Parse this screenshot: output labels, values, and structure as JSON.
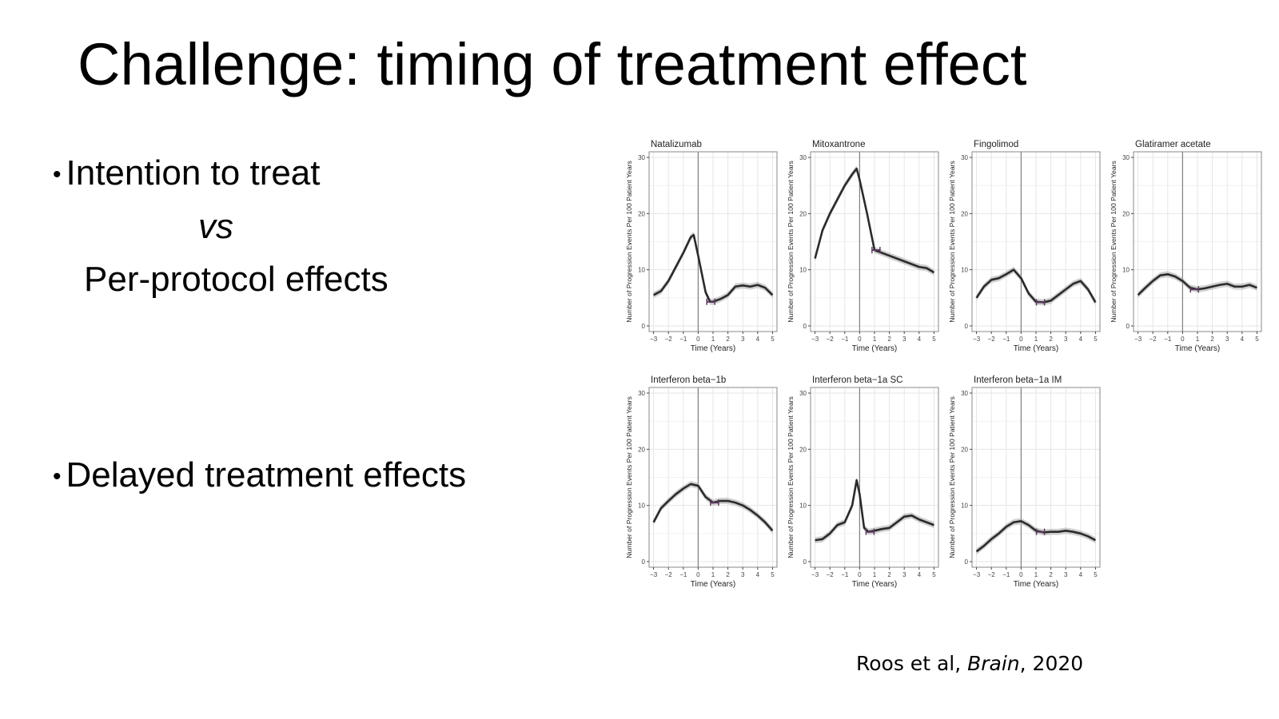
{
  "slide": {
    "title": "Challenge: timing of treatment effect",
    "bullets": {
      "first": "Intention to treat",
      "versus": "vs",
      "second_line": "Per-protocol effects",
      "third": "Delayed treatment effects"
    },
    "bullet_glyph": "•",
    "citation": {
      "authors": "Roos et al, ",
      "journal": "Brain",
      "year": ", 2020"
    }
  },
  "chart_data": [
    {
      "type": "line",
      "title": "Natalizumab",
      "xlabel": "Time (Years)",
      "ylabel": "Number of Progression Events Per 100 Patient Years",
      "xlim": [
        -3.3,
        5.3
      ],
      "ylim": [
        -1,
        31
      ],
      "xticks": [
        -3,
        -2,
        -1,
        0,
        1,
        2,
        3,
        4,
        5
      ],
      "yticks": [
        0,
        10,
        20,
        30
      ],
      "vline": 0,
      "x": [
        -3,
        -2.5,
        -2,
        -1.5,
        -1,
        -0.5,
        -0.3,
        0,
        0.5,
        0.8,
        1,
        1.5,
        2,
        2.5,
        3,
        3.5,
        4,
        4.5,
        5
      ],
      "y": [
        5.5,
        6.2,
        8,
        10.5,
        13,
        15.8,
        16.2,
        12.5,
        6,
        4.3,
        4.3,
        4.8,
        5.5,
        7,
        7.2,
        7,
        7.3,
        6.8,
        5.5
      ],
      "marker": {
        "x": 0.85,
        "y": 4.3
      }
    },
    {
      "type": "line",
      "title": "Mitoxantrone",
      "xlabel": "Time (Years)",
      "ylabel": "Number of Progression Events Per 100 Patient Years",
      "xlim": [
        -3.3,
        5.3
      ],
      "ylim": [
        -1,
        31
      ],
      "xticks": [
        -3,
        -2,
        -1,
        0,
        1,
        2,
        3,
        4,
        5
      ],
      "yticks": [
        0,
        10,
        20,
        30
      ],
      "vline": 0,
      "x": [
        -3,
        -2.5,
        -2,
        -1.5,
        -1,
        -0.5,
        -0.2,
        0,
        0.5,
        1,
        1.5,
        2,
        2.5,
        3,
        3.5,
        4,
        4.5,
        5
      ],
      "y": [
        12,
        17,
        20,
        22.5,
        25,
        27,
        28,
        26,
        20,
        13.5,
        13,
        12.5,
        12,
        11.5,
        11,
        10.5,
        10.3,
        9.5
      ],
      "marker": {
        "x": 1.1,
        "y": 13.5
      }
    },
    {
      "type": "line",
      "title": "Fingolimod",
      "xlabel": "Time (Years)",
      "ylabel": "Number of Progression Events Per 100 Patient Years",
      "xlim": [
        -3.3,
        5.3
      ],
      "ylim": [
        -1,
        31
      ],
      "xticks": [
        -3,
        -2,
        -1,
        0,
        1,
        2,
        3,
        4,
        5
      ],
      "yticks": [
        0,
        10,
        20,
        30
      ],
      "vline": 0,
      "x": [
        -3,
        -2.5,
        -2,
        -1.5,
        -1,
        -0.5,
        0,
        0.5,
        1,
        1.5,
        2,
        2.5,
        3,
        3.5,
        4,
        4.5,
        5
      ],
      "y": [
        5,
        7,
        8.2,
        8.5,
        9.2,
        10,
        8.5,
        5.8,
        4.3,
        4.2,
        4.5,
        5.5,
        6.5,
        7.5,
        8,
        6.5,
        4.2
      ],
      "marker": {
        "x": 1.3,
        "y": 4.2
      }
    },
    {
      "type": "line",
      "title": "Glatiramer acetate",
      "xlabel": "Time (Years)",
      "ylabel": "Number of Progression Events Per 100 Patient Years",
      "xlim": [
        -3.3,
        5.3
      ],
      "ylim": [
        -1,
        31
      ],
      "xticks": [
        -3,
        -2,
        -1,
        0,
        1,
        2,
        3,
        4,
        5
      ],
      "yticks": [
        0,
        10,
        20,
        30
      ],
      "vline": 0,
      "x": [
        -3,
        -2.5,
        -2,
        -1.5,
        -1,
        -0.5,
        0,
        0.5,
        1,
        1.5,
        2,
        2.5,
        3,
        3.5,
        4,
        4.5,
        5
      ],
      "y": [
        5.5,
        6.8,
        8,
        9,
        9.2,
        8.8,
        8,
        6.8,
        6.5,
        6.7,
        7,
        7.3,
        7.5,
        7,
        7,
        7.3,
        6.8
      ],
      "marker": {
        "x": 0.8,
        "y": 6.5
      }
    },
    {
      "type": "line",
      "title": "Interferon beta−1b",
      "xlabel": "Time (Years)",
      "ylabel": "Number of Progression Events Per 100 Patient Years",
      "xlim": [
        -3.3,
        5.3
      ],
      "ylim": [
        -1,
        31
      ],
      "xticks": [
        -3,
        -2,
        -1,
        0,
        1,
        2,
        3,
        4,
        5
      ],
      "yticks": [
        0,
        10,
        20,
        30
      ],
      "vline": 0,
      "x": [
        -3,
        -2.5,
        -2,
        -1.5,
        -1,
        -0.5,
        0,
        0.5,
        1,
        1.5,
        2,
        2.5,
        3,
        3.5,
        4,
        4.5,
        5
      ],
      "y": [
        7,
        9.5,
        10.8,
        12,
        13,
        13.8,
        13.5,
        11.5,
        10.5,
        10.8,
        10.8,
        10.5,
        10,
        9.2,
        8.2,
        7,
        5.5
      ],
      "marker": {
        "x": 1.1,
        "y": 10.5
      }
    },
    {
      "type": "line",
      "title": "Interferon beta−1a SC",
      "xlabel": "Time (Years)",
      "ylabel": "Number of Progression Events Per 100 Patient Years",
      "xlim": [
        -3.3,
        5.3
      ],
      "ylim": [
        -1,
        31
      ],
      "xticks": [
        -3,
        -2,
        -1,
        0,
        1,
        2,
        3,
        4,
        5
      ],
      "yticks": [
        0,
        10,
        20,
        30
      ],
      "vline": 0,
      "x": [
        -3,
        -2.5,
        -2,
        -1.5,
        -1,
        -0.5,
        -0.2,
        0,
        0.3,
        0.6,
        1,
        1.5,
        2,
        2.5,
        3,
        3.5,
        4,
        4.5,
        5
      ],
      "y": [
        3.8,
        4,
        5,
        6.5,
        7,
        10,
        14.5,
        12,
        6,
        5.3,
        5.5,
        5.8,
        6,
        7,
        8,
        8.2,
        7.5,
        7,
        6.5
      ],
      "marker": {
        "x": 0.7,
        "y": 5.3
      }
    },
    {
      "type": "line",
      "title": "Interferon beta−1a IM",
      "xlabel": "Time (Years)",
      "ylabel": "Number of Progression Events Per 100 Patient Years",
      "xlim": [
        -3.3,
        5.3
      ],
      "ylim": [
        -1,
        31
      ],
      "xticks": [
        -3,
        -2,
        -1,
        0,
        1,
        2,
        3,
        4,
        5
      ],
      "yticks": [
        0,
        10,
        20,
        30
      ],
      "vline": 0,
      "x": [
        -3,
        -2.5,
        -2,
        -1.5,
        -1,
        -0.5,
        0,
        0.5,
        1,
        1.5,
        2,
        2.5,
        3,
        3.5,
        4,
        4.5,
        5
      ],
      "y": [
        1.8,
        2.8,
        4,
        5,
        6.2,
        7,
        7.2,
        6.5,
        5.5,
        5.2,
        5.3,
        5.3,
        5.5,
        5.3,
        5,
        4.5,
        3.8
      ],
      "marker": {
        "x": 1.3,
        "y": 5.3
      }
    }
  ],
  "colors": {
    "line": "#2b2b2b",
    "ribbon": "#a9a9a9",
    "marker": "#5a3a5e",
    "grid": "#e6e6e6",
    "panel_border": "#8a8a8a",
    "vline": "#7f7f7f"
  }
}
